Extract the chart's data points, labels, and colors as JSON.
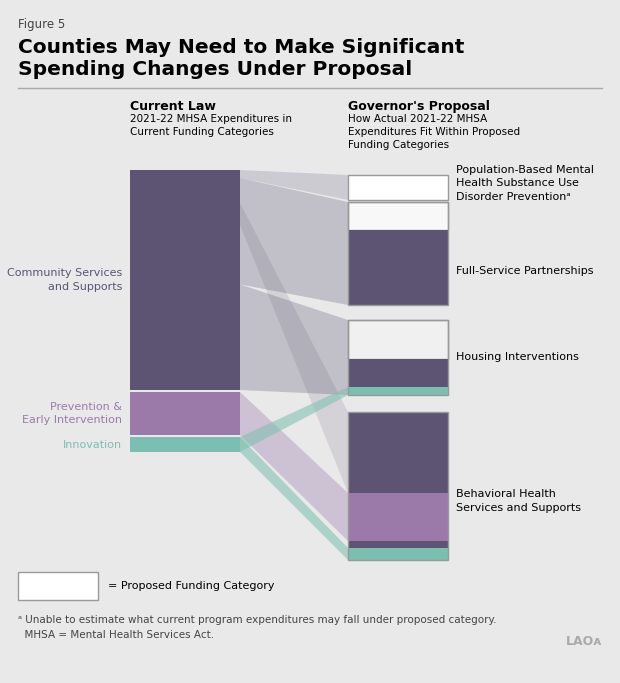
{
  "figure_label": "Figure 5",
  "title_line1": "Counties May Need to Make Significant",
  "title_line2": "Spending Changes Under Proposal",
  "bg_color": "#e9e9e9",
  "left_header": "Current Law",
  "left_subheader": "2021-22 MHSA Expenditures in\nCurrent Funding Categories",
  "right_header": "Governor's Proposal",
  "right_subheader": "How Actual 2021-22 MHSA\nExpenditures Fit Within Proposed\nFunding Categories",
  "color_dark_purple": "#5c5472",
  "color_pei_purple": "#9b7aaa",
  "color_teal": "#7bbfb0",
  "color_outline": "#999999",
  "footnote1": "ᵃ Unable to estimate what current program expenditures may fall under proposed category.",
  "footnote2": "  MHSA = Mental Health Services Act.",
  "lao_text": "LAOᴀ"
}
